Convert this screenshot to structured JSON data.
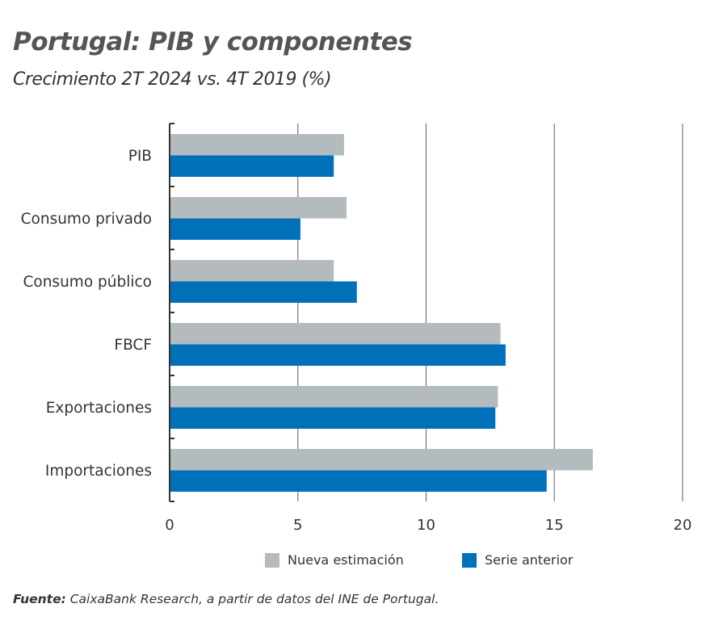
{
  "chart_data": {
    "type": "bar",
    "orientation": "horizontal",
    "title": "Portugal: PIB y componentes",
    "subtitle": "Crecimiento 2T 2024 vs. 4T 2019 (%)",
    "categories": [
      "PIB",
      "Consumo privado",
      "Consumo público",
      "FBCF",
      "Exportaciones",
      "Importaciones"
    ],
    "series": [
      {
        "name": "Nueva estimación",
        "color": "#b4bbbf",
        "values": [
          6.8,
          6.9,
          6.4,
          12.9,
          12.8,
          16.5
        ]
      },
      {
        "name": "Serie anterior",
        "color": "#0071b9",
        "values": [
          6.4,
          5.1,
          7.3,
          13.1,
          12.7,
          14.7
        ]
      }
    ],
    "xlim": [
      0,
      20
    ],
    "xticks": [
      "0",
      "5",
      "10",
      "15",
      "20"
    ],
    "grid": true,
    "legend": "bottom"
  },
  "source": {
    "label": "Fuente:",
    "text": " CaixaBank Research, a partir de datos del INE de Portugal."
  }
}
